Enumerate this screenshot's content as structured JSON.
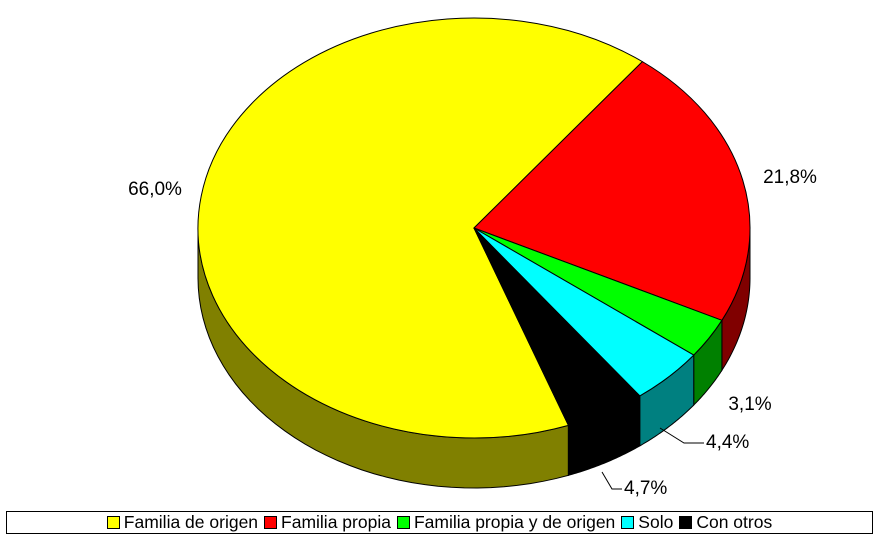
{
  "chart_data": {
    "type": "pie",
    "categories": [
      "Familia de origen",
      "Familia propia",
      "Familia propia y de origen",
      "Solo",
      "Con otros"
    ],
    "values": [
      66.0,
      21.8,
      3.1,
      4.4,
      4.7
    ],
    "value_labels": [
      "66,0%",
      "21,8%",
      "3,1%",
      "4,4%",
      "4,7%"
    ],
    "colors": [
      "#ffff00",
      "#ff0000",
      "#00ff00",
      "#00ffff",
      "#000000"
    ],
    "legend": "bottom"
  }
}
